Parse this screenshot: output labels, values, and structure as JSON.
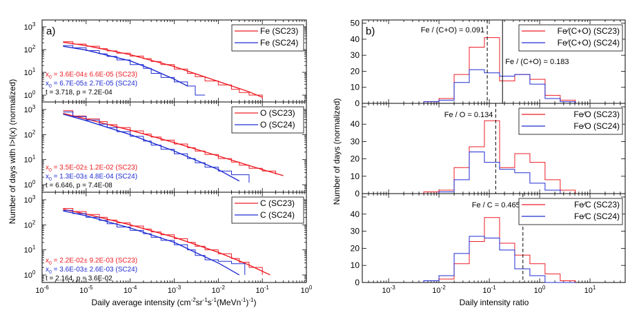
{
  "colors": {
    "sc23": "#ee1c24",
    "sc24": "#1f2bd1",
    "axis": "#000000",
    "ann": "#000000"
  },
  "panel_labels": {
    "left": "a)",
    "right": "b)"
  },
  "left_axes": {
    "ylabel": "Number of days with I>I(x) (normalized)",
    "xlabel_parts": [
      "Daily average intensity (cm",
      "-2",
      "sr",
      "-1",
      "s",
      "-1",
      "(MeVn",
      "-1",
      ")",
      "-1",
      ")"
    ],
    "x_ticks": [
      {
        "base": "10",
        "exp": "-6",
        "v": -6
      },
      {
        "base": "10",
        "exp": "-5",
        "v": -5
      },
      {
        "base": "10",
        "exp": "-4",
        "v": -4
      },
      {
        "base": "10",
        "exp": "-3",
        "v": -3
      },
      {
        "base": "10",
        "exp": "-2",
        "v": -2
      },
      {
        "base": "10",
        "exp": "-1",
        "v": -1
      },
      {
        "base": "10",
        "exp": "0",
        "v": 0
      }
    ],
    "y_ticks": [
      {
        "base": "10",
        "exp": "0",
        "v": 0
      },
      {
        "base": "10",
        "exp": "1",
        "v": 1
      },
      {
        "base": "10",
        "exp": "2",
        "v": 2
      },
      {
        "base": "10",
        "exp": "3",
        "v": 3
      }
    ]
  },
  "right_axes": {
    "ylabel": "Number of days (normalized)",
    "xlabel": "Daily intensity ratio",
    "x_ticks": [
      {
        "base": "10",
        "exp": "-3",
        "v": -3
      },
      {
        "base": "10",
        "exp": "-2",
        "v": -2
      },
      {
        "base": "10",
        "exp": "-1",
        "v": -1
      },
      {
        "base": "10",
        "exp": "0",
        "v": 0
      },
      {
        "base": "10",
        "exp": "1",
        "v": 1
      }
    ],
    "y_ticks": [
      "0",
      "10",
      "20",
      "30",
      "40",
      "50"
    ]
  },
  "chart_data": [
    {
      "type": "line",
      "id": "left-fe",
      "xscale": "log",
      "yscale": "log",
      "xlim": [
        1e-06,
        1
      ],
      "ylim": [
        0.5,
        2000
      ],
      "legend": [
        "Fe (SC23)",
        "Fe (SC24)"
      ],
      "annotations": [
        {
          "x": "x",
          "sub": "0",
          "rest": " = 3.6E-04± 6.6E-05 (SC23)",
          "color": "sc23"
        },
        {
          "x": "x",
          "sub": "0",
          "rest": " = 6.7E-05± 2.7E-05 (SC24)",
          "color": "sc24"
        },
        {
          "x": "",
          "sub": "",
          "rest": "t = 3.718, p = 7.2E-04",
          "color": "ann"
        }
      ],
      "series": [
        {
          "name": "Fe (SC23) histogram",
          "color": "sc23",
          "style": "step",
          "x": [
            3e-06,
            5e-06,
            1e-05,
            2e-05,
            3e-05,
            5e-05,
            0.0001,
            0.0002,
            0.0003,
            0.0005,
            0.001,
            0.002,
            0.003,
            0.005,
            0.01,
            0.02,
            0.03,
            0.05,
            0.1
          ],
          "y": [
            220,
            175,
            140,
            110,
            88,
            70,
            52,
            40,
            30,
            22,
            14,
            9,
            6.5,
            4.2,
            2.8,
            1.8,
            1.3,
            1.0,
            0.7
          ]
        },
        {
          "name": "Fe (SC23) fit",
          "color": "sc23",
          "style": "line",
          "x": [
            3e-06,
            1e-05,
            0.0001,
            0.001,
            0.01,
            0.05,
            0.1
          ],
          "y": [
            210,
            150,
            60,
            18,
            4,
            1.4,
            0.8
          ]
        },
        {
          "name": "Fe (SC24) histogram",
          "color": "sc24",
          "style": "step",
          "x": [
            3e-06,
            5e-06,
            1e-05,
            2e-05,
            3e-05,
            5e-05,
            0.0001,
            0.0002,
            0.0003,
            0.0005,
            0.001,
            0.002,
            0.003,
            0.005
          ],
          "y": [
            150,
            120,
            90,
            65,
            50,
            35,
            22,
            15,
            9,
            6,
            3.8,
            2.5,
            1.0,
            1.0
          ]
        },
        {
          "name": "Fe (SC24) fit",
          "color": "sc24",
          "style": "line",
          "x": [
            3e-06,
            1e-05,
            0.0001,
            0.0003,
            0.001,
            0.002
          ],
          "y": [
            140,
            95,
            32,
            14,
            5,
            2.5
          ]
        }
      ]
    },
    {
      "type": "line",
      "id": "left-o",
      "xscale": "log",
      "yscale": "log",
      "xlim": [
        1e-06,
        1
      ],
      "ylim": [
        0.5,
        2000
      ],
      "legend": [
        "O (SC23)",
        "O (SC24)"
      ],
      "annotations": [
        {
          "x": "x",
          "sub": "0",
          "rest": " = 3.5E-02± 1.2E-02 (SC23)",
          "color": "sc23"
        },
        {
          "x": "x",
          "sub": "0",
          "rest": " = 1.3E-03± 4.8E-04 (SC24)",
          "color": "sc24"
        },
        {
          "x": "",
          "sub": "",
          "rest": "t = 6.646, p = 7.4E-08",
          "color": "ann"
        }
      ],
      "series": [
        {
          "name": "O (SC23) histogram",
          "color": "sc23",
          "style": "step",
          "x": [
            3e-06,
            5e-06,
            1e-05,
            2e-05,
            3e-05,
            5e-05,
            0.0001,
            0.0002,
            0.0003,
            0.0005,
            0.001,
            0.002,
            0.003,
            0.005,
            0.01,
            0.02,
            0.03,
            0.05,
            0.1,
            0.2
          ],
          "y": [
            900,
            550,
            420,
            330,
            250,
            190,
            140,
            105,
            80,
            60,
            42,
            30,
            22,
            16,
            11,
            8,
            6,
            4.5,
            3.5,
            2.6
          ]
        },
        {
          "name": "O (SC23) fit",
          "color": "sc23",
          "style": "line",
          "x": [
            3e-06,
            1e-05,
            0.0001,
            0.001,
            0.01,
            0.1,
            0.3
          ],
          "y": [
            700,
            420,
            150,
            48,
            14,
            4,
            2.3
          ]
        },
        {
          "name": "O (SC24) histogram",
          "color": "sc24",
          "style": "step",
          "x": [
            3e-06,
            5e-06,
            1e-05,
            2e-05,
            3e-05,
            5e-05,
            0.0001,
            0.0002,
            0.0003,
            0.0005,
            0.001,
            0.002,
            0.003,
            0.005,
            0.01,
            0.02,
            0.05
          ],
          "y": [
            800,
            520,
            380,
            260,
            190,
            130,
            85,
            55,
            38,
            26,
            17,
            11,
            7.5,
            5,
            3.5,
            2.5,
            1.2
          ]
        },
        {
          "name": "O (SC24) fit",
          "color": "sc24",
          "style": "line",
          "x": [
            3e-06,
            1e-05,
            0.0001,
            0.001,
            0.01,
            0.03
          ],
          "y": [
            650,
            360,
            100,
            22,
            4,
            1.4
          ]
        }
      ]
    },
    {
      "type": "line",
      "id": "left-c",
      "xscale": "log",
      "yscale": "log",
      "xlim": [
        1e-06,
        1
      ],
      "ylim": [
        0.5,
        2000
      ],
      "legend": [
        "C (SC23)",
        "C (SC24)"
      ],
      "annotations": [
        {
          "x": "x",
          "sub": "0",
          "rest": " = 2.2E-02± 9.2E-03 (SC23)",
          "color": "sc23"
        },
        {
          "x": "x",
          "sub": "0",
          "rest": " = 3.6E-03± 2.6E-03 (SC24)",
          "color": "sc24"
        },
        {
          "x": "",
          "sub": "",
          "rest": "t = 2.164, p = 3.6E-02",
          "color": "ann"
        }
      ],
      "series": [
        {
          "name": "C (SC23) histogram",
          "color": "sc23",
          "style": "step",
          "x": [
            3e-06,
            5e-06,
            1e-05,
            2e-05,
            3e-05,
            5e-05,
            0.0001,
            0.0002,
            0.0003,
            0.0005,
            0.001,
            0.002,
            0.003,
            0.005,
            0.01,
            0.02,
            0.03,
            0.05,
            0.1
          ],
          "y": [
            450,
            340,
            260,
            200,
            155,
            120,
            90,
            68,
            52,
            40,
            28,
            20,
            14,
            10,
            7,
            4.5,
            3.2,
            2.0,
            1.0
          ]
        },
        {
          "name": "C (SC23) fit",
          "color": "sc23",
          "style": "line",
          "x": [
            3e-06,
            1e-05,
            0.0001,
            0.001,
            0.01,
            0.05,
            0.15
          ],
          "y": [
            420,
            270,
            100,
            32,
            8,
            2.5,
            1.0
          ]
        },
        {
          "name": "C (SC24) histogram",
          "color": "sc24",
          "style": "step",
          "x": [
            3e-06,
            5e-06,
            1e-05,
            2e-05,
            3e-05,
            5e-05,
            0.0001,
            0.0002,
            0.0003,
            0.0005,
            0.001,
            0.002,
            0.003,
            0.005,
            0.01,
            0.02,
            0.04
          ],
          "y": [
            380,
            280,
            200,
            150,
            110,
            82,
            60,
            44,
            32,
            24,
            16,
            10,
            6,
            4,
            3.5,
            2.8,
            1.0
          ]
        },
        {
          "name": "C (SC24) fit",
          "color": "sc24",
          "style": "line",
          "x": [
            3e-06,
            1e-05,
            0.0001,
            0.001,
            0.003,
            0.01,
            0.03
          ],
          "y": [
            360,
            230,
            75,
            20,
            8,
            3,
            1.0
          ]
        }
      ]
    },
    {
      "type": "bar",
      "id": "right-feco",
      "xscale": "log",
      "xlim": [
        0.0003,
        50
      ],
      "ylim": [
        0,
        52
      ],
      "legend": [
        "Fe⁄(C+O) (SC23)",
        "Fe⁄(C+O) (SC24)"
      ],
      "bin_edges": [
        0.005,
        0.01,
        0.02,
        0.04,
        0.08,
        0.16,
        0.32,
        0.64,
        1.28,
        2.56,
        5.12
      ],
      "series": [
        {
          "name": "Fe/(C+O) (SC23)",
          "color": "sc23",
          "values": [
            1,
            3,
            18,
            35,
            41,
            14,
            18,
            15,
            5,
            2
          ]
        },
        {
          "name": "Fe/(C+O) (SC24)",
          "color": "sc24",
          "values": [
            1,
            2,
            13,
            21,
            19,
            17,
            18,
            12,
            3,
            1
          ]
        }
      ],
      "vlines": [
        {
          "x": 0.091,
          "style": "dashed",
          "label": "Fe / (C+O) = 0.091"
        },
        {
          "x": 0.183,
          "style": "solid",
          "label": "Fe / (C+O) = 0.183"
        }
      ]
    },
    {
      "type": "bar",
      "id": "right-feo",
      "xscale": "log",
      "xlim": [
        0.0003,
        50
      ],
      "ylim": [
        0,
        52
      ],
      "legend": [
        "Fe⁄O (SC23)",
        "Fe⁄O (SC24)"
      ],
      "bin_edges": [
        0.005,
        0.01,
        0.02,
        0.04,
        0.08,
        0.16,
        0.32,
        0.64,
        1.28,
        2.56,
        5.12
      ],
      "series": [
        {
          "name": "Fe/O (SC23)",
          "color": "sc23",
          "values": [
            1,
            2,
            15,
            27,
            42,
            15,
            23,
            18,
            8,
            2
          ]
        },
        {
          "name": "Fe/O (SC24)",
          "color": "sc24",
          "values": [
            0,
            1,
            8,
            24,
            18,
            14,
            12,
            6,
            2,
            0
          ]
        }
      ],
      "vlines": [
        {
          "x": 0.134,
          "style": "dashed",
          "label": "Fe / O = 0.134"
        }
      ]
    },
    {
      "type": "bar",
      "id": "right-fec",
      "xscale": "log",
      "xlim": [
        0.0003,
        50
      ],
      "ylim": [
        0,
        52
      ],
      "legend": [
        "Fe⁄C (SC23)",
        "Fe⁄C (SC24)"
      ],
      "bin_edges": [
        0.005,
        0.01,
        0.02,
        0.04,
        0.08,
        0.16,
        0.32,
        0.64,
        1.28,
        2.56,
        5.12
      ],
      "series": [
        {
          "name": "Fe/C (SC23)",
          "color": "sc23",
          "values": [
            1,
            2,
            11,
            24,
            38,
            23,
            16,
            11,
            5,
            1
          ]
        },
        {
          "name": "Fe/C (SC24)",
          "color": "sc24",
          "values": [
            1,
            4,
            17,
            27,
            26,
            19,
            8,
            4,
            0,
            0
          ]
        }
      ],
      "vlines": [
        {
          "x": 0.465,
          "style": "dashed",
          "label": "Fe / C = 0.465"
        }
      ]
    }
  ]
}
